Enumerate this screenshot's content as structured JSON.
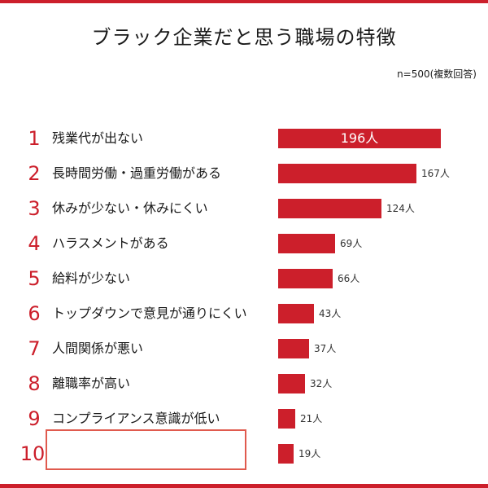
{
  "colors": {
    "accent": "#cc1f2b",
    "highlight_border": "#e05a4e"
  },
  "header": {
    "title": "ブラック企業だと思う職場の特徴",
    "sample": "n=500(複数回答)"
  },
  "chart_data": {
    "type": "bar",
    "orientation": "horizontal",
    "title": "ブラック企業だと思う職場の特徴",
    "subtitle": "n=500(複数回答)",
    "unit": "人",
    "categories": [
      "残業代が出ない",
      "長時間労働・過重労働がある",
      "休みが少ない・休みにくい",
      "ハラスメントがある",
      "給料が少ない",
      "トップダウンで意見が通りにくい",
      "人間関係が悪い",
      "離職率が高い",
      "コンプライアンス意識が低い",
      ""
    ],
    "ranks": [
      "1",
      "2",
      "3",
      "4",
      "5",
      "6",
      "7",
      "8",
      "9",
      "10"
    ],
    "values": [
      196,
      167,
      124,
      69,
      66,
      43,
      37,
      32,
      21,
      19
    ],
    "value_labels": [
      "196人",
      "167人",
      "124人",
      "69人",
      "66人",
      "43人",
      "37人",
      "32人",
      "21人",
      "19人"
    ],
    "xlim": [
      0,
      196
    ],
    "grid": false,
    "legend": "none"
  }
}
